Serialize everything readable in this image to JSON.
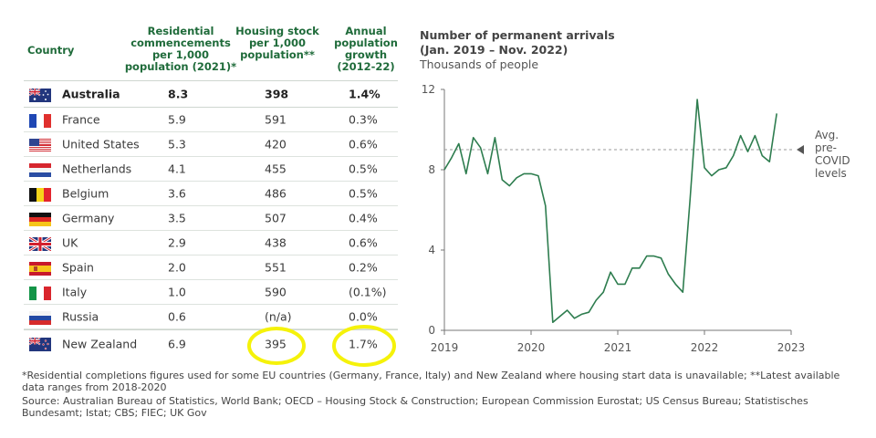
{
  "table": {
    "headers": [
      "Country",
      "Residential\ncommencements\nper 1,000\npopulation (2021)*",
      "Housing stock\nper 1,000\npopulation**",
      "Annual\npopulation\ngrowth\n(2012-22)"
    ],
    "rows": [
      {
        "country": "Australia",
        "flag": "au-flag-icon",
        "commencements": "8.3",
        "stock": "398",
        "growth": "1.4%",
        "bold": true
      },
      {
        "country": "France",
        "flag": "fr-flag-icon",
        "commencements": "5.9",
        "stock": "591",
        "growth": "0.3%"
      },
      {
        "country": "United States",
        "flag": "us-flag-icon",
        "commencements": "5.3",
        "stock": "420",
        "growth": "0.6%"
      },
      {
        "country": "Netherlands",
        "flag": "nl-flag-icon",
        "commencements": "4.1",
        "stock": "455",
        "growth": "0.5%"
      },
      {
        "country": "Belgium",
        "flag": "be-flag-icon",
        "commencements": "3.6",
        "stock": "486",
        "growth": "0.5%"
      },
      {
        "country": "Germany",
        "flag": "de-flag-icon",
        "commencements": "3.5",
        "stock": "507",
        "growth": "0.4%"
      },
      {
        "country": "UK",
        "flag": "uk-flag-icon",
        "commencements": "2.9",
        "stock": "438",
        "growth": "0.6%"
      },
      {
        "country": "Spain",
        "flag": "es-flag-icon",
        "commencements": "2.0",
        "stock": "551",
        "growth": "0.2%"
      },
      {
        "country": "Italy",
        "flag": "it-flag-icon",
        "commencements": "1.0",
        "stock": "590",
        "growth": "(0.1%)"
      },
      {
        "country": "Russia",
        "flag": "ru-flag-icon",
        "commencements": "0.6",
        "stock": "(n/a)",
        "growth": "0.0%"
      },
      {
        "country": "New Zealand",
        "flag": "nz-flag-icon",
        "commencements": "6.9",
        "stock": "395",
        "growth": "1.7%",
        "highlighted": true
      }
    ],
    "highlight_color": "#f5f20a"
  },
  "chart": {
    "title_line1": "Number of permanent arrivals",
    "title_line2": "(Jan. 2019 – Nov. 2022)",
    "subtitle": "Thousands of people",
    "annotation": "Avg.\npre-\nCOVID\nlevels"
  },
  "chart_data": {
    "type": "line",
    "title": "Number of permanent arrivals (Jan. 2019 – Nov. 2022)",
    "ylabel": "Thousands of people",
    "ylim": [
      0,
      12
    ],
    "xlim": [
      2019,
      2023
    ],
    "y_ticks": [
      "0",
      "4",
      "8",
      "12"
    ],
    "x_ticks": [
      "2019",
      "2020",
      "2021",
      "2022",
      "2023"
    ],
    "reference_line": {
      "label": "Avg. pre-COVID levels",
      "value": 9.0
    },
    "line_color": "#2e7d4f",
    "series": [
      {
        "x": [
          "2019-01",
          "2019-02",
          "2019-03",
          "2019-04",
          "2019-05",
          "2019-06",
          "2019-07",
          "2019-08",
          "2019-09",
          "2019-10",
          "2019-11",
          "2019-12",
          "2020-01",
          "2020-02",
          "2020-03",
          "2020-04",
          "2020-05",
          "2020-06",
          "2020-07",
          "2020-08",
          "2020-09",
          "2020-10",
          "2020-11",
          "2020-12",
          "2021-01",
          "2021-02",
          "2021-03",
          "2021-04",
          "2021-05",
          "2021-06",
          "2021-07",
          "2021-08",
          "2021-09",
          "2021-10",
          "2021-11",
          "2021-12",
          "2022-01",
          "2022-02",
          "2022-03",
          "2022-04",
          "2022-05",
          "2022-06",
          "2022-07",
          "2022-08",
          "2022-09",
          "2022-10",
          "2022-11"
        ],
        "values": [
          8.0,
          8.6,
          9.3,
          7.8,
          9.6,
          9.1,
          7.8,
          9.6,
          7.5,
          7.2,
          7.6,
          7.8,
          7.8,
          7.7,
          6.2,
          0.4,
          0.7,
          1.0,
          0.6,
          0.8,
          0.9,
          1.5,
          1.9,
          2.9,
          2.3,
          2.3,
          3.1,
          3.1,
          3.7,
          3.7,
          3.6,
          2.8,
          2.3,
          1.9,
          6.5,
          11.5,
          8.1,
          7.7,
          8.0,
          8.1,
          8.7,
          9.7,
          8.9,
          9.7,
          8.7,
          8.4,
          10.8
        ]
      }
    ]
  },
  "footnotes": [
    "*Residential completions figures used for some EU countries (Germany, France, Italy) and New Zealand where housing start data is unavailable; **Latest available data ranges from 2018-2020",
    "Source: Australian Bureau of Statistics, World Bank; OECD – Housing Stock & Construction; European Commission Eurostat; US Census Bureau; Statistisches Bundesamt; Istat; CBS; FIEC; UK Gov"
  ]
}
